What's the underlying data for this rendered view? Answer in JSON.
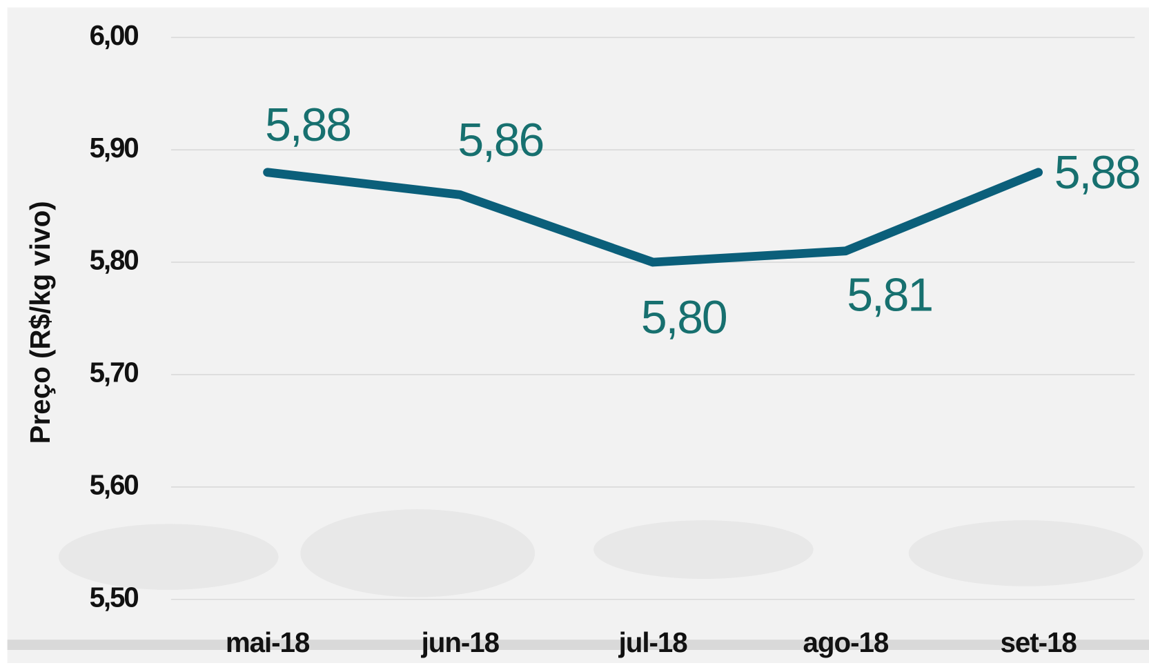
{
  "chart_data": {
    "type": "line",
    "y_label": "Preço (R$/kg vivo)",
    "categories": [
      "mai-18",
      "jun-18",
      "jul-18",
      "ago-18",
      "set-18"
    ],
    "series": [
      {
        "color": "#0b5f7a",
        "values": [
          5.88,
          5.86,
          5.8,
          5.81,
          5.88
        ],
        "value_labels": [
          "5,88",
          "5,86",
          "5,80",
          "5,81",
          "5,88"
        ]
      }
    ],
    "ylim": [
      5.5,
      6.0
    ],
    "yticks": [
      {
        "value": 5.5,
        "label": "5,50"
      },
      {
        "value": 5.6,
        "label": "5,60"
      },
      {
        "value": 5.7,
        "label": "5,70"
      },
      {
        "value": 5.8,
        "label": "5,80"
      },
      {
        "value": 5.9,
        "label": "5,90"
      },
      {
        "value": 6.0,
        "label": "6,00"
      }
    ],
    "grid": true
  }
}
